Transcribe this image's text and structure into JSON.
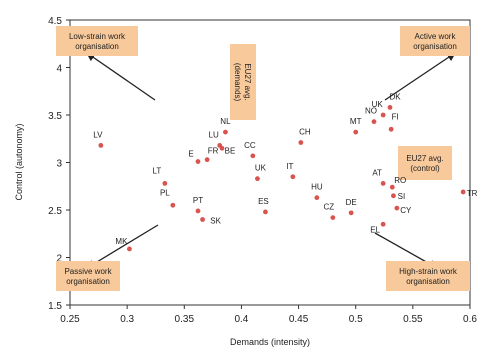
{
  "chart_data": {
    "type": "scatter",
    "xlabel": "Demands (intensity)",
    "ylabel": "Control (autonomy)",
    "xlim": [
      0.25,
      0.6
    ],
    "ylim": [
      1.5,
      4.5
    ],
    "xticks": [
      0.25,
      0.3,
      0.35,
      0.4,
      0.45,
      0.5,
      0.55,
      0.6
    ],
    "xtick_labels": [
      "0.25",
      "0.3",
      "0.35",
      "0.4",
      "0.45",
      "0.5",
      "0.55",
      "0.6"
    ],
    "yticks": [
      1.5,
      2,
      2.5,
      3,
      3.5,
      4,
      4.5
    ],
    "ytick_labels": [
      "1.5",
      "2",
      "2.5",
      "3",
      "3.5",
      "4",
      "4.5"
    ],
    "grid": false,
    "marker_color": "#d9534f",
    "box_color": "#f8c99b",
    "points": [
      {
        "label": "LV",
        "x": 0.277,
        "y": 3.18
      },
      {
        "label": "MK",
        "x": 0.302,
        "y": 2.09
      },
      {
        "label": "LT",
        "x": 0.333,
        "y": 2.78
      },
      {
        "label": "PL",
        "x": 0.34,
        "y": 2.55
      },
      {
        "label": "E",
        "x": 0.362,
        "y": 3.01
      },
      {
        "label": "FR",
        "x": 0.37,
        "y": 3.03
      },
      {
        "label": "PT",
        "x": 0.362,
        "y": 2.49
      },
      {
        "label": "SK",
        "x": 0.366,
        "y": 2.4
      },
      {
        "label": "LU",
        "x": 0.381,
        "y": 3.18
      },
      {
        "label": "NL",
        "x": 0.386,
        "y": 3.32
      },
      {
        "label": "BE",
        "x": 0.383,
        "y": 3.15
      },
      {
        "label": "CC",
        "x": 0.41,
        "y": 3.07
      },
      {
        "label": "UK",
        "x": 0.414,
        "y": 2.83
      },
      {
        "label": "ES",
        "x": 0.421,
        "y": 2.48
      },
      {
        "label": "IT",
        "x": 0.445,
        "y": 2.85
      },
      {
        "label": "CH",
        "x": 0.452,
        "y": 3.21
      },
      {
        "label": "HU",
        "x": 0.466,
        "y": 2.63
      },
      {
        "label": "CZ",
        "x": 0.48,
        "y": 2.42
      },
      {
        "label": "DE",
        "x": 0.496,
        "y": 2.47
      },
      {
        "label": "MT",
        "x": 0.5,
        "y": 3.32
      },
      {
        "label": "NO",
        "x": 0.516,
        "y": 3.43
      },
      {
        "label": "UK",
        "x": 0.524,
        "y": 3.5
      },
      {
        "label": "DK",
        "x": 0.53,
        "y": 3.58
      },
      {
        "label": "FI",
        "x": 0.531,
        "y": 3.35
      },
      {
        "label": "AT",
        "x": 0.524,
        "y": 2.78
      },
      {
        "label": "EL",
        "x": 0.524,
        "y": 2.35
      },
      {
        "label": "RO",
        "x": 0.532,
        "y": 2.74
      },
      {
        "label": "SI",
        "x": 0.533,
        "y": 2.65
      },
      {
        "label": "CY",
        "x": 0.536,
        "y": 2.52
      },
      {
        "label": "TR",
        "x": 0.594,
        "y": 2.69
      }
    ],
    "annotations": [
      {
        "id": "low-strain",
        "text": [
          "Low-strain work",
          "organisation"
        ]
      },
      {
        "id": "active",
        "text": [
          "Active work",
          "organisation"
        ]
      },
      {
        "id": "passive",
        "text": [
          "Passive work",
          "organisation"
        ]
      },
      {
        "id": "high-strain",
        "text": [
          "High-strain work",
          "organisation"
        ]
      },
      {
        "id": "eu27-control",
        "text": [
          "EU27 avg.",
          "(control)"
        ]
      },
      {
        "id": "eu27-demands",
        "text": [
          "EU27 avg.",
          "(demands)"
        ]
      }
    ]
  }
}
